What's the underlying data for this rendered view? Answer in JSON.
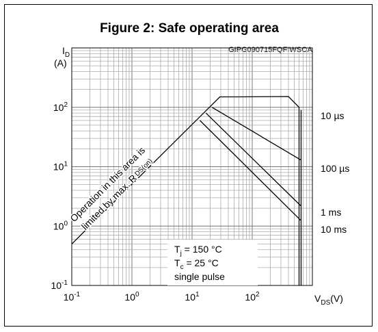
{
  "figure": {
    "title": "Figure 2: Safe operating area",
    "code": "GIPG090715FQFIWSOA"
  },
  "chart_data": {
    "type": "line",
    "title": "Figure 2: Safe operating area",
    "xscale": "log",
    "yscale": "log",
    "xlim": [
      0.1,
      1000
    ],
    "ylim": [
      0.1,
      1000
    ],
    "x_ticks": [
      {
        "base": "10",
        "exp": "-1"
      },
      {
        "base": "10",
        "exp": "0"
      },
      {
        "base": "10",
        "exp": "1"
      },
      {
        "base": "10",
        "exp": "2"
      }
    ],
    "y_ticks": [
      {
        "base": "10",
        "exp": "-1"
      },
      {
        "base": "10",
        "exp": "0"
      },
      {
        "base": "10",
        "exp": "1"
      },
      {
        "base": "10",
        "exp": "2"
      }
    ],
    "xlabel": {
      "main": "V",
      "sub": "DS",
      "unit": "(V)"
    },
    "ylabel": {
      "main": "I",
      "sub": "D",
      "unit": "(A)"
    },
    "grid": true,
    "annotation": {
      "line1": "Operation in this area is",
      "line2": "limited by max. R",
      "line2_sub": "DS(on)"
    },
    "conditions": {
      "tj_main": "T",
      "tj_sub": "j",
      "tj_value": " = 150 °C",
      "tc_main": "T",
      "tc_sub": "c",
      "tc_value": " = 25 °C",
      "pulse": "single pulse"
    },
    "series": [
      {
        "name": "10 µs",
        "points": [
          [
            0.1,
            0.5
          ],
          [
            29,
            150
          ],
          [
            58,
            150
          ],
          [
            400,
            152
          ],
          [
            600,
            100
          ],
          [
            600,
            0.1
          ]
        ]
      },
      {
        "name": "100 µs",
        "points": [
          [
            21.5,
            100
          ],
          [
            640,
            13
          ]
        ]
      },
      {
        "name": "1 ms",
        "points": [
          [
            17,
            80
          ],
          [
            640,
            2.2
          ]
        ]
      },
      {
        "name": "10 ms",
        "points": [
          [
            13.5,
            60
          ],
          [
            640,
            1.25
          ]
        ]
      }
    ],
    "legend": [
      "10 µs",
      "100 µs",
      "1 ms",
      "10 ms"
    ]
  }
}
